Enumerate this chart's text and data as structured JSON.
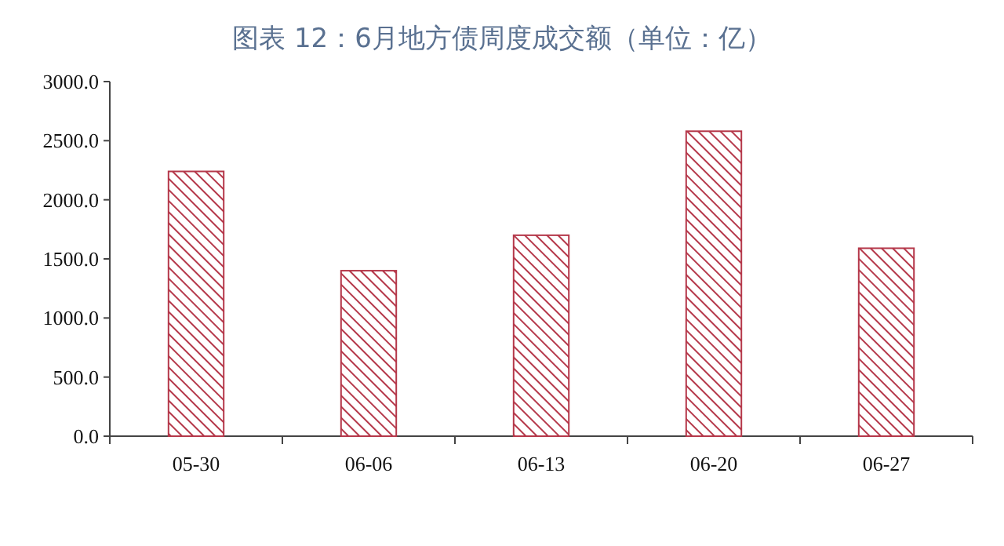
{
  "chart_data": {
    "type": "bar",
    "title": "图表 12：6月地方债周度成交额（单位：亿）",
    "categories": [
      "05-30",
      "06-06",
      "06-13",
      "06-20",
      "06-27"
    ],
    "values": [
      2240,
      1400,
      1700,
      2580,
      1590
    ],
    "color": "#b5384a",
    "ylim": [
      0,
      3000
    ],
    "yticks": [
      {
        "value": 0,
        "label": "0.0"
      },
      {
        "value": 500,
        "label": "500.0"
      },
      {
        "value": 1000,
        "label": "1000.0"
      },
      {
        "value": 1500,
        "label": "1500.0"
      },
      {
        "value": 2000,
        "label": "2000.0"
      },
      {
        "value": 2500,
        "label": "2500.0"
      },
      {
        "value": 3000,
        "label": "3000.0"
      }
    ],
    "grid": false
  }
}
